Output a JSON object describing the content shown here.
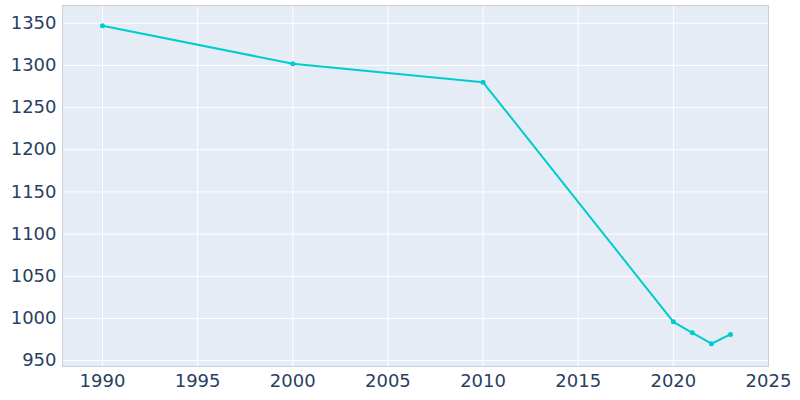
{
  "chart_data": {
    "type": "line",
    "x": [
      1990,
      2000,
      2010,
      2020,
      2021,
      2022,
      2023
    ],
    "values": [
      1347,
      1302,
      1280,
      996,
      983,
      970,
      981
    ],
    "color": "#00cccc",
    "marker": "circle",
    "xlim": [
      1987.9,
      2025
    ],
    "xticks": [
      1990,
      1995,
      2000,
      2005,
      2010,
      2015,
      2020,
      2025
    ],
    "ylim": [
      943,
      1371
    ],
    "yticks": [
      950,
      1000,
      1050,
      1100,
      1150,
      1200,
      1250,
      1300,
      1350
    ],
    "grid": true
  }
}
